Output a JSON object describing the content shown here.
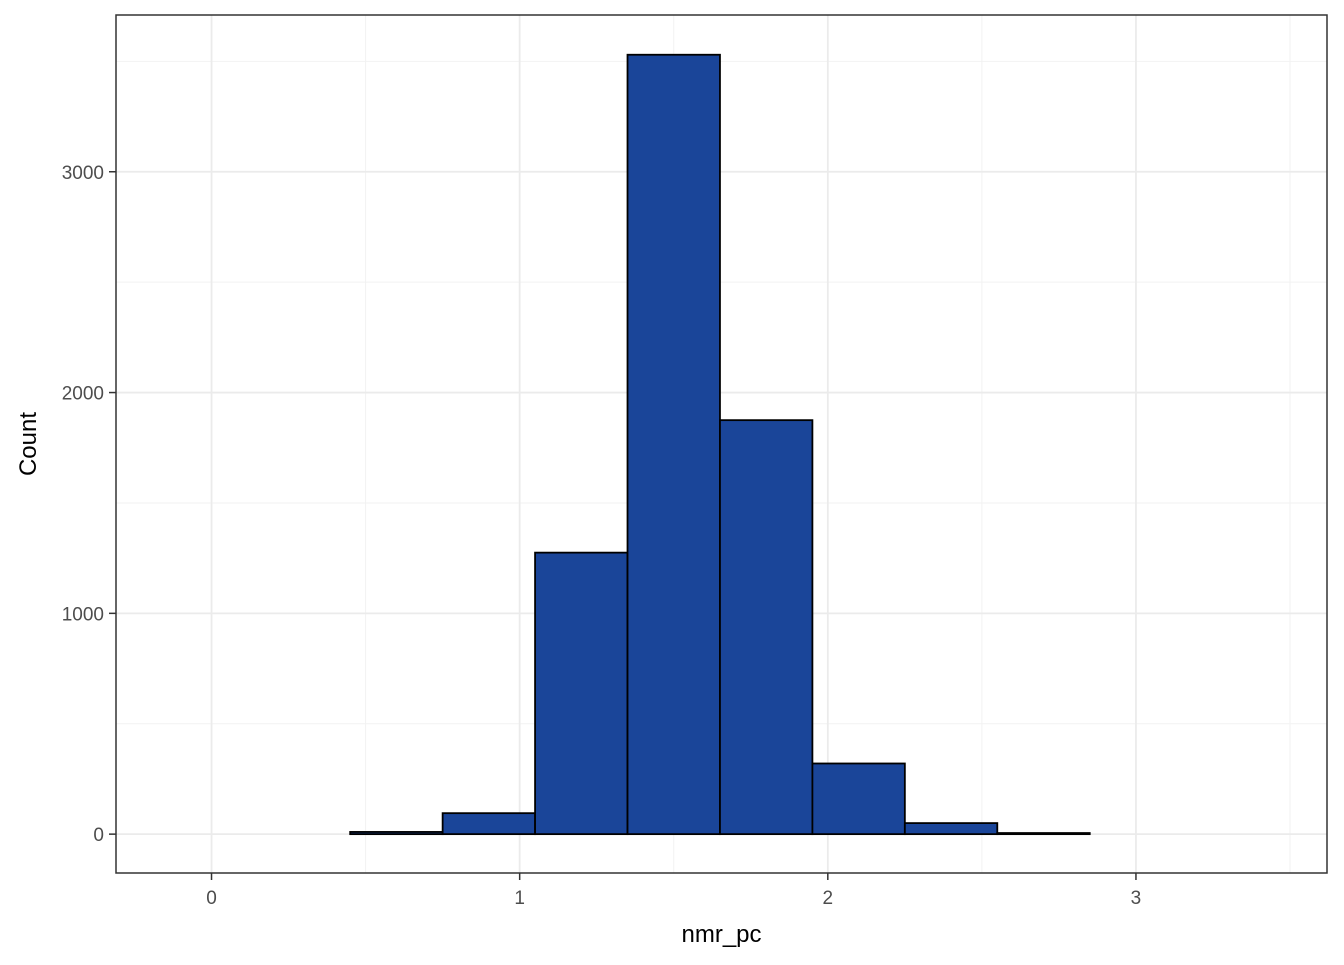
{
  "chart_data": {
    "type": "bar",
    "subtype": "histogram",
    "title": "",
    "xlabel": "nmr_pc",
    "ylabel": "Count",
    "xlim": [
      -0.31,
      3.62
    ],
    "ylim": [
      -176,
      3710
    ],
    "x_ticks": [
      0,
      1,
      2,
      3
    ],
    "x_tick_labels": [
      "0",
      "1",
      "2",
      "3"
    ],
    "y_ticks": [
      0,
      1000,
      2000,
      3000
    ],
    "y_tick_labels": [
      "0",
      "1000",
      "2000",
      "3000"
    ],
    "bins": [
      {
        "x_start": -0.15,
        "x_end": 0.15,
        "count": 0
      },
      {
        "x_start": 0.15,
        "x_end": 0.45,
        "count": 0
      },
      {
        "x_start": 0.45,
        "x_end": 0.75,
        "count": 10
      },
      {
        "x_start": 0.75,
        "x_end": 1.05,
        "count": 95
      },
      {
        "x_start": 1.05,
        "x_end": 1.35,
        "count": 1275
      },
      {
        "x_start": 1.35,
        "x_end": 1.65,
        "count": 3530
      },
      {
        "x_start": 1.65,
        "x_end": 1.95,
        "count": 1875
      },
      {
        "x_start": 1.95,
        "x_end": 2.25,
        "count": 320
      },
      {
        "x_start": 2.25,
        "x_end": 2.55,
        "count": 50
      },
      {
        "x_start": 2.55,
        "x_end": 2.85,
        "count": 5
      },
      {
        "x_start": 2.85,
        "x_end": 3.15,
        "count": 0
      },
      {
        "x_start": 3.15,
        "x_end": 3.45,
        "count": 0
      }
    ],
    "bar_color": "#1a4599",
    "bar_outline_color": "#000000",
    "grid": true,
    "legend": "none",
    "theme": "bw"
  }
}
